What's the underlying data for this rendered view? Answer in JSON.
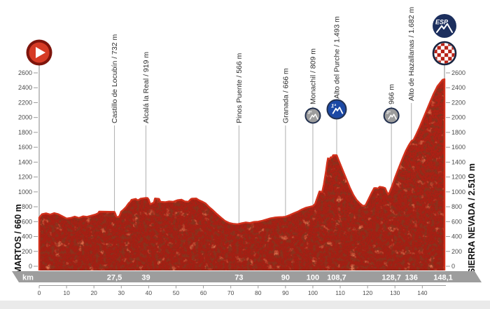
{
  "chart_data": {
    "type": "area",
    "title": "",
    "x_unit": "km",
    "xlim": [
      0,
      148.1
    ],
    "ylim": [
      0,
      2600
    ],
    "y_ticks": [
      0,
      200,
      400,
      600,
      800,
      1000,
      1200,
      1400,
      1600,
      1800,
      2000,
      2200,
      2400,
      2600
    ],
    "x_ticks": [
      0,
      10,
      20,
      30,
      40,
      50,
      60,
      70,
      80,
      90,
      100,
      110,
      120,
      130,
      140
    ],
    "start": {
      "label": "MARTOS / 660 m",
      "km": 0,
      "elevation": 660
    },
    "finish": {
      "label": "SIERRA NEVADA / 2.510 m",
      "km": 148.1,
      "elevation": 2510
    },
    "waypoints": [
      {
        "label": "Castillo de Locubín / 732 m",
        "km": 27.5,
        "km_label": "27,5",
        "elevation": 732,
        "touch_elevation": 732,
        "icon": "none"
      },
      {
        "label": "Alcalá la Real / 919 m",
        "km": 39,
        "km_label": "39",
        "elevation": 919,
        "touch_elevation": 919,
        "icon": "none"
      },
      {
        "label": "Pinos Puente / 566 m",
        "km": 73,
        "km_label": "73",
        "elevation": 566,
        "touch_elevation": 566,
        "icon": "none"
      },
      {
        "label": "Granada / 666 m",
        "km": 90,
        "km_label": "90",
        "elevation": 666,
        "touch_elevation": 666,
        "icon": "none"
      },
      {
        "label": "Monachil / 809 m",
        "km": 100,
        "km_label": "100",
        "elevation": 809,
        "touch_elevation": 809,
        "icon": "cat3"
      },
      {
        "label": "Alto del Purche / 1.493 m",
        "km": 108.7,
        "km_label": "108,7",
        "elevation": 1493,
        "touch_elevation": 1493,
        "icon": "cat1"
      },
      {
        "label": "966 m",
        "km": 128.7,
        "km_label": "128,7",
        "elevation": 966,
        "touch_elevation": 1085,
        "icon": "cat3"
      },
      {
        "label": "Alto de Hazallanas / 1.682 m",
        "km": 136,
        "km_label": "136",
        "elevation": 1682,
        "touch_elevation": 1682,
        "icon": "none"
      }
    ],
    "km_bar": {
      "unit_label": "km",
      "finish_km_label": "148,1"
    },
    "icon_text": {
      "esp": "ESP",
      "cat1": "1ª",
      "cat3": "3ª"
    },
    "profile": [
      [
        0,
        655
      ],
      [
        1,
        700
      ],
      [
        2.5,
        712
      ],
      [
        4,
        695
      ],
      [
        5.5,
        715
      ],
      [
        7,
        700
      ],
      [
        8.5,
        672
      ],
      [
        10,
        642
      ],
      [
        11.5,
        650
      ],
      [
        13,
        668
      ],
      [
        14.5,
        650
      ],
      [
        16,
        672
      ],
      [
        17.5,
        665
      ],
      [
        19,
        680
      ],
      [
        20.5,
        695
      ],
      [
        21.5,
        712
      ],
      [
        21.9,
        735
      ],
      [
        27.5,
        732
      ],
      [
        27.9,
        700
      ],
      [
        28.2,
        666
      ],
      [
        29.1,
        662
      ],
      [
        29.6,
        700
      ],
      [
        29.9,
        735
      ],
      [
        30.7,
        758
      ],
      [
        31.7,
        795
      ],
      [
        32.7,
        848
      ],
      [
        33.3,
        868
      ],
      [
        33.7,
        893
      ],
      [
        35.3,
        906
      ],
      [
        35.8,
        890
      ],
      [
        36.3,
        890
      ],
      [
        37,
        908
      ],
      [
        39,
        919
      ],
      [
        39.6,
        918
      ],
      [
        40.0,
        898
      ],
      [
        40.6,
        835
      ],
      [
        41.9,
        858
      ],
      [
        42.3,
        912
      ],
      [
        43.8,
        906
      ],
      [
        44.3,
        868
      ],
      [
        46,
        862
      ],
      [
        47.5,
        872
      ],
      [
        49,
        868
      ],
      [
        50.5,
        888
      ],
      [
        52,
        896
      ],
      [
        53.2,
        872
      ],
      [
        54.5,
        868
      ],
      [
        55.5,
        905
      ],
      [
        55.9,
        910
      ],
      [
        57.4,
        912
      ],
      [
        58.4,
        888
      ],
      [
        59.5,
        870
      ],
      [
        60.8,
        845
      ],
      [
        62,
        800
      ],
      [
        63.5,
        752
      ],
      [
        65,
        700
      ],
      [
        66.5,
        652
      ],
      [
        68,
        608
      ],
      [
        69.5,
        582
      ],
      [
        71,
        570
      ],
      [
        72.5,
        566
      ],
      [
        74,
        578
      ],
      [
        75.5,
        590
      ],
      [
        77,
        582
      ],
      [
        78.5,
        596
      ],
      [
        80,
        600
      ],
      [
        81.5,
        612
      ],
      [
        83,
        628
      ],
      [
        84.5,
        645
      ],
      [
        86,
        655
      ],
      [
        87.5,
        660
      ],
      [
        89,
        662
      ],
      [
        90,
        666
      ],
      [
        91.5,
        688
      ],
      [
        93,
        712
      ],
      [
        94.5,
        735
      ],
      [
        96,
        765
      ],
      [
        97.5,
        788
      ],
      [
        99,
        800
      ],
      [
        100,
        809
      ],
      [
        100.8,
        838
      ],
      [
        101.6,
        920
      ],
      [
        102.4,
        1006
      ],
      [
        103.4,
        998
      ],
      [
        104.0,
        1100
      ],
      [
        104.8,
        1280
      ],
      [
        105.2,
        1390
      ],
      [
        105.5,
        1452
      ],
      [
        106.1,
        1440
      ],
      [
        106.5,
        1465
      ],
      [
        107.0,
        1465
      ],
      [
        107.4,
        1493
      ],
      [
        108.7,
        1493
      ],
      [
        109.5,
        1420
      ],
      [
        110.5,
        1330
      ],
      [
        111.5,
        1240
      ],
      [
        112.5,
        1150
      ],
      [
        113.5,
        1060
      ],
      [
        114.8,
        960
      ],
      [
        116,
        890
      ],
      [
        117.2,
        845
      ],
      [
        118.3,
        812
      ],
      [
        119.2,
        818
      ],
      [
        120.3,
        900
      ],
      [
        121.5,
        990
      ],
      [
        122.4,
        1050
      ],
      [
        123.0,
        1052
      ],
      [
        123.8,
        1046
      ],
      [
        124.4,
        1068
      ],
      [
        125.6,
        1062
      ],
      [
        126.4,
        1050
      ],
      [
        126.9,
        1008
      ],
      [
        127.5,
        966
      ],
      [
        128.0,
        992
      ],
      [
        129,
        1085
      ],
      [
        130,
        1190
      ],
      [
        131,
        1285
      ],
      [
        132,
        1380
      ],
      [
        133,
        1470
      ],
      [
        134,
        1555
      ],
      [
        135,
        1625
      ],
      [
        136,
        1682
      ],
      [
        136.8,
        1700
      ],
      [
        137.8,
        1775
      ],
      [
        139,
        1870
      ],
      [
        140.2,
        1975
      ],
      [
        141.5,
        2090
      ],
      [
        142.8,
        2205
      ],
      [
        144,
        2310
      ],
      [
        145.5,
        2420
      ],
      [
        146.6,
        2470
      ],
      [
        147.4,
        2508
      ],
      [
        148.1,
        2515
      ]
    ]
  },
  "colors": {
    "profile_red": "#b82317",
    "profile_edge": "#d2301b",
    "texture_dark": "#4d0903",
    "bar_gray": "#9d9d9d",
    "line_gray": "#b5b5b5",
    "axis_gray": "#9a9a9a",
    "tick_text": "#4c4c4c",
    "label_text": "#2e2e2e",
    "navy": "#1c2f5e",
    "blue_cat1": "#1c49a5",
    "icon_gray": "#9c9c9c",
    "start_ring": "#7e150c",
    "start_fill": "#d63b25",
    "footer_band": "#eaeaea"
  }
}
